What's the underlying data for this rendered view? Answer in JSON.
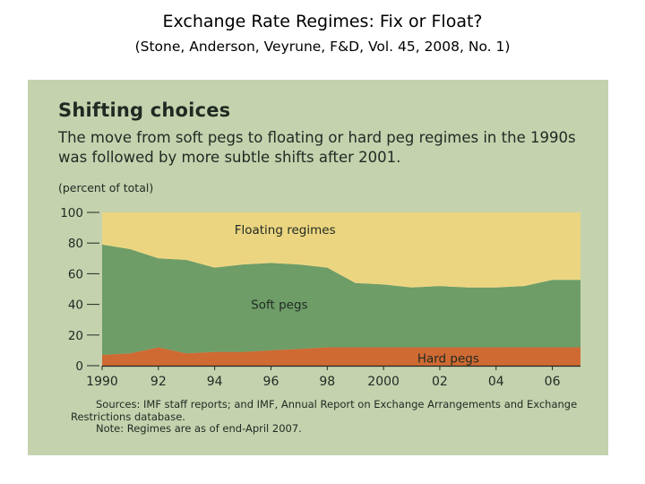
{
  "slide": {
    "title": "Exchange Rate Regimes: Fix or Float?",
    "subtitle": "(Stone, Anderson, Veyrune, F&D, Vol. 45, 2008, No. 1)"
  },
  "panel": {
    "title": "Shifting choices",
    "description": "The move from soft pegs to floating or hard peg regimes in the 1990s was followed by more subtle shifts after 2001.",
    "unit_label": "(percent of total)",
    "sources_line1": "Sources: IMF staff reports; and IMF, Annual Report on Exchange Arrangements and Exchange",
    "sources_line2": "Restrictions database.",
    "note": "Note: Regimes are as of end-April 2007."
  },
  "colors": {
    "panel_background": "#c5d2ae",
    "floating": "#ecd581",
    "soft": "#6e9d68",
    "hard": "#cf6a33",
    "text": "#1f2a22"
  },
  "chart_data": {
    "type": "area",
    "stacked": true,
    "x": [
      1990,
      1991,
      1992,
      1993,
      1994,
      1995,
      1996,
      1997,
      1998,
      1999,
      2000,
      2001,
      2002,
      2003,
      2004,
      2005,
      2006,
      2007
    ],
    "series": [
      {
        "name": "Hard pegs",
        "color": "#cf6a33",
        "values": [
          7,
          8,
          12,
          8,
          9,
          9,
          10,
          11,
          12,
          12,
          12,
          12,
          12,
          12,
          12,
          12,
          12,
          12
        ]
      },
      {
        "name": "Soft pegs",
        "color": "#6e9d68",
        "values": [
          72,
          68,
          58,
          61,
          55,
          57,
          57,
          55,
          52,
          42,
          41,
          39,
          40,
          39,
          39,
          40,
          44,
          44
        ]
      },
      {
        "name": "Floating regimes",
        "color": "#ecd581",
        "values": [
          21,
          24,
          30,
          31,
          36,
          34,
          33,
          34,
          36,
          46,
          47,
          49,
          48,
          49,
          49,
          48,
          44,
          44
        ]
      }
    ],
    "xlim": [
      1990,
      2007
    ],
    "ylim": [
      0,
      100
    ],
    "y_ticks": [
      "0",
      "20",
      "40",
      "60",
      "80",
      "100"
    ],
    "x_ticks": [
      {
        "value": 1990,
        "label": "1990"
      },
      {
        "value": 1992,
        "label": "92"
      },
      {
        "value": 1994,
        "label": "94"
      },
      {
        "value": 1996,
        "label": "96"
      },
      {
        "value": 1998,
        "label": "98"
      },
      {
        "value": 2000,
        "label": "2000"
      },
      {
        "value": 2002,
        "label": "02"
      },
      {
        "value": 2004,
        "label": "04"
      },
      {
        "value": 2006,
        "label": "06"
      }
    ],
    "area_labels": [
      "Floating regimes",
      "Soft pegs",
      "Hard pegs"
    ],
    "grid": false,
    "legend": "inline"
  }
}
